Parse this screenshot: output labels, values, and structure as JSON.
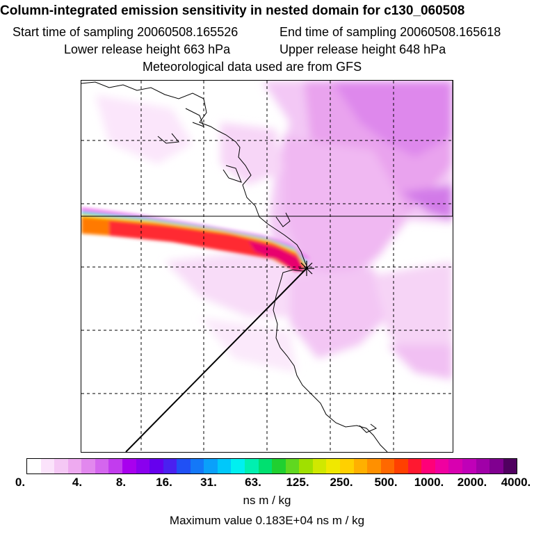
{
  "header": {
    "title": "Column-integrated emission sensitivity in nested domain for c130_060508",
    "start_label": "Start time of sampling 20060508.165526",
    "end_label": "End time of sampling 20060508.165618",
    "lower_label": "Lower release height  663 hPa",
    "upper_label": "Upper release height  648 hPa",
    "met_label": "Meteorological data used are from GFS"
  },
  "colorbar": {
    "tick_labels": [
      "0.",
      "4.",
      "8.",
      "16.",
      "31.",
      "63.",
      "125.",
      "250.",
      "500.",
      "1000.",
      "2000.",
      "4000."
    ],
    "colors": [
      "#ffffff",
      "#fbe3fb",
      "#f5c8f5",
      "#eeaaf0",
      "#e288ee",
      "#d466ee",
      "#c23cee",
      "#a800ee",
      "#8a00ee",
      "#6600ee",
      "#4a20f0",
      "#2050f5",
      "#1478f8",
      "#0aa0fa",
      "#00c8fa",
      "#00f0f0",
      "#00f0b0",
      "#00e070",
      "#20d030",
      "#60d820",
      "#a0e000",
      "#d0e800",
      "#f0e800",
      "#ffd000",
      "#ffb000",
      "#ff9000",
      "#ff6800",
      "#ff4000",
      "#ff1830",
      "#ff0078",
      "#f000a0",
      "#d800b0",
      "#c000b8",
      "#a000a8",
      "#800090",
      "#500060"
    ],
    "units": "ns m / kg",
    "max_value": "Maximum value  0.183E+04 ns m / kg"
  },
  "map": {
    "release_point_symbol": "release-point-cross-icon",
    "coastline_color": "#000000",
    "grid_style": "dashed"
  }
}
